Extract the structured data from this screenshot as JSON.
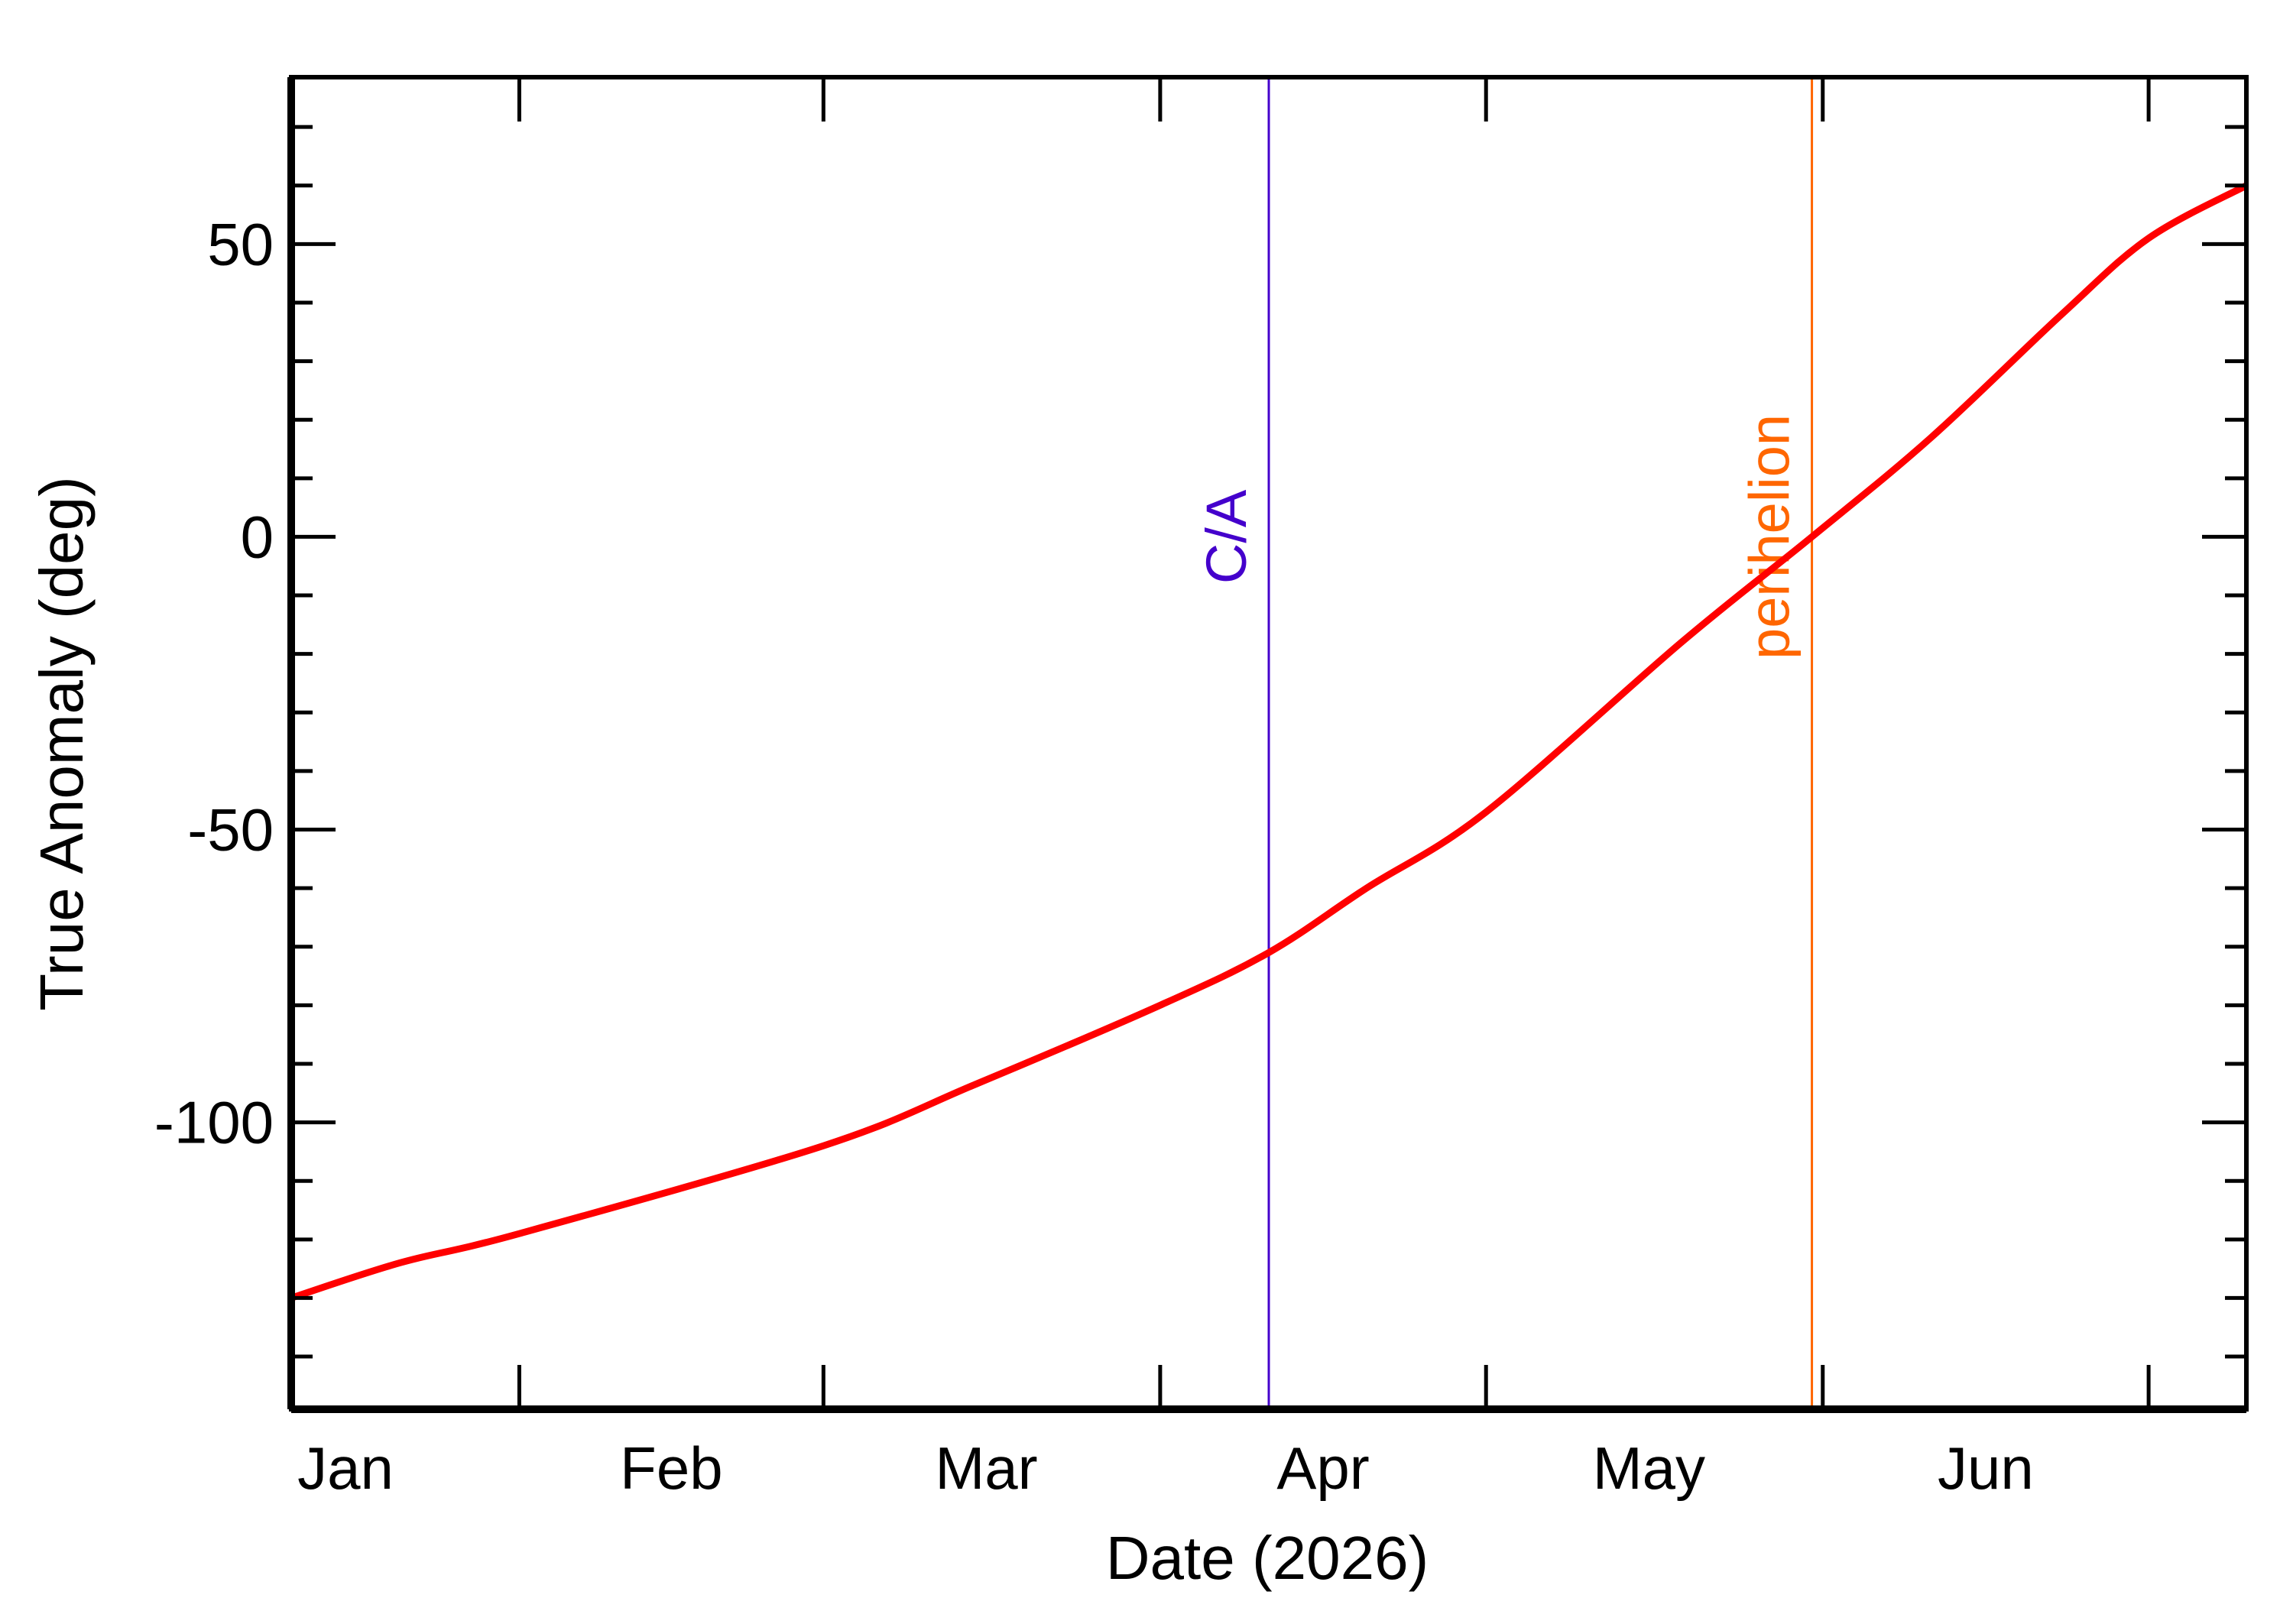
{
  "chart_data": {
    "type": "line",
    "title": "",
    "xlabel": "Date (2026)",
    "ylabel": "True Anomaly (deg)",
    "xlim": [
      "2026-01-11",
      "2026-07-10"
    ],
    "ylim": [
      -149,
      78.5
    ],
    "x_ticks": [
      {
        "date": "2026-02-01"
      },
      {
        "date": "2026-03-01"
      },
      {
        "date": "2026-04-01"
      },
      {
        "date": "2026-05-01"
      },
      {
        "date": "2026-06-01"
      },
      {
        "date": "2026-07-01"
      }
    ],
    "x_tick_labels": [
      {
        "label": "Jan",
        "date": "2026-01-16"
      },
      {
        "label": "Feb",
        "date": "2026-02-15"
      },
      {
        "label": "Mar",
        "date": "2026-03-16"
      },
      {
        "label": "Apr",
        "date": "2026-04-16"
      },
      {
        "label": "May",
        "date": "2026-05-16"
      },
      {
        "label": "Jun",
        "date": "2026-06-16"
      }
    ],
    "y_ticks": [
      {
        "value": 50,
        "label": "50"
      },
      {
        "value": 0,
        "label": "0"
      },
      {
        "value": -50,
        "label": "-50"
      },
      {
        "value": -100,
        "label": "-100"
      }
    ],
    "y_minor_step": 10,
    "grid": false,
    "series": [
      {
        "color": "#ff0000",
        "points": [
          [
            "2026-01-11",
            -130
          ],
          [
            "2026-01-21",
            -124
          ],
          [
            "2026-02-01",
            -119
          ],
          [
            "2026-03-01",
            -104
          ],
          [
            "2026-03-15",
            -93.5
          ],
          [
            "2026-04-01",
            -80
          ],
          [
            "2026-04-11",
            -71
          ],
          [
            "2026-04-20",
            -60
          ],
          [
            "2026-05-01",
            -47
          ],
          [
            "2026-05-19",
            -18
          ],
          [
            "2026-05-31",
            0
          ],
          [
            "2026-06-11",
            17
          ],
          [
            "2026-06-23",
            38
          ],
          [
            "2026-07-01",
            51
          ],
          [
            "2026-07-10",
            60
          ]
        ]
      }
    ],
    "markers": [
      {
        "label": "C/A",
        "date": "2026-04-11",
        "color": "#4400cc"
      },
      {
        "label": "perihelion",
        "date": "2026-05-31",
        "color": "#ff6600"
      }
    ]
  }
}
